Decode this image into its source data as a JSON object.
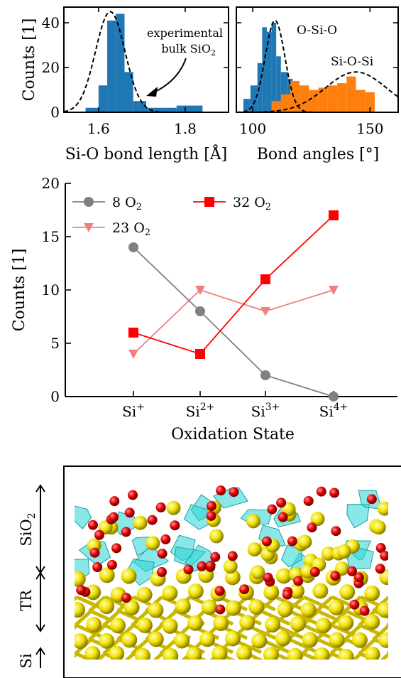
{
  "colors": {
    "blue": "#1f77b4",
    "orange": "#ff7f0e",
    "gray": "#808080",
    "red": "#ff0000",
    "pink": "#f08080",
    "si_atom": "#f0e000",
    "o_atom": "#e00000",
    "polyhedra": "#2ad4d4"
  },
  "chart_data": [
    {
      "type": "histogram",
      "ylabel": "Counts [1]",
      "xlabel": "Si-O bond length [Å]",
      "xlim": [
        1.52,
        1.9
      ],
      "ylim": [
        0,
        47
      ],
      "xticks": [
        1.6,
        1.8
      ],
      "xtick_labels": [
        "1.6",
        "1.8"
      ],
      "yticks": [
        0,
        20,
        40
      ],
      "ytick_labels": [
        "0",
        "20",
        "40"
      ],
      "bins": [
        {
          "x0": 1.57,
          "x1": 1.6,
          "count": 2
        },
        {
          "x0": 1.6,
          "x1": 1.62,
          "count": 12
        },
        {
          "x0": 1.62,
          "x1": 1.64,
          "count": 41
        },
        {
          "x0": 1.64,
          "x1": 1.66,
          "count": 44
        },
        {
          "x0": 1.66,
          "x1": 1.68,
          "count": 18
        },
        {
          "x0": 1.68,
          "x1": 1.71,
          "count": 5
        },
        {
          "x0": 1.71,
          "x1": 1.78,
          "count": 2
        },
        {
          "x0": 1.78,
          "x1": 1.84,
          "count": 3
        }
      ],
      "reference_curve": {
        "mu": 1.627,
        "sigma": 0.034,
        "peak": 45
      },
      "annotation_line1": "experimental",
      "annotation_line2": "bulk SiO",
      "annotation_sub": "2"
    },
    {
      "type": "histogram",
      "xlabel": "Bond angles [°]",
      "xlim": [
        93,
        162
      ],
      "ylim": [
        0,
        47
      ],
      "xticks": [
        100,
        150
      ],
      "xtick_labels": [
        "100",
        "150"
      ],
      "series": [
        {
          "name": "O-Si-O",
          "color": "#1f77b4",
          "bins": [
            {
              "x0": 96,
              "x1": 99,
              "count": 6
            },
            {
              "x0": 99,
              "x1": 102,
              "count": 12
            },
            {
              "x0": 102,
              "x1": 104,
              "count": 22
            },
            {
              "x0": 104,
              "x1": 106,
              "count": 38
            },
            {
              "x0": 106,
              "x1": 108,
              "count": 36
            },
            {
              "x0": 108,
              "x1": 110,
              "count": 40
            },
            {
              "x0": 110,
              "x1": 112,
              "count": 25
            },
            {
              "x0": 112,
              "x1": 115,
              "count": 18
            },
            {
              "x0": 115,
              "x1": 117,
              "count": 15
            },
            {
              "x0": 117,
              "x1": 120,
              "count": 12
            }
          ]
        },
        {
          "name": "Si-O-Si",
          "color": "#ff7f0e",
          "bins": [
            {
              "x0": 108,
              "x1": 112,
              "count": 5
            },
            {
              "x0": 112,
              "x1": 116,
              "count": 8
            },
            {
              "x0": 116,
              "x1": 120,
              "count": 14
            },
            {
              "x0": 120,
              "x1": 124,
              "count": 12
            },
            {
              "x0": 124,
              "x1": 128,
              "count": 10
            },
            {
              "x0": 128,
              "x1": 132,
              "count": 11
            },
            {
              "x0": 132,
              "x1": 136,
              "count": 12
            },
            {
              "x0": 136,
              "x1": 140,
              "count": 13
            },
            {
              "x0": 140,
              "x1": 144,
              "count": 16
            },
            {
              "x0": 144,
              "x1": 148,
              "count": 10
            },
            {
              "x0": 148,
              "x1": 152,
              "count": 9
            }
          ]
        }
      ],
      "reference_curves": [
        {
          "mu": 109.5,
          "sigma": 4.2,
          "peak": 41
        },
        {
          "mu": 144,
          "sigma": 13,
          "peak": 18
        }
      ]
    },
    {
      "type": "line",
      "xlabel": "Oxidation State",
      "ylabel": "Counts [1]",
      "ylim": [
        0,
        20
      ],
      "yticks": [
        0,
        5,
        10,
        15,
        20
      ],
      "ytick_labels": [
        "0",
        "5",
        "10",
        "15",
        "20"
      ],
      "categories": [
        {
          "base": "Si",
          "sup": "+"
        },
        {
          "base": "Si",
          "sup": "2+"
        },
        {
          "base": "Si",
          "sup": "3+"
        },
        {
          "base": "Si",
          "sup": "4+"
        }
      ],
      "series": [
        {
          "name_base": "8 O",
          "name_sub": "2",
          "color": "#808080",
          "marker": "circle",
          "values": [
            14,
            8,
            2,
            0
          ]
        },
        {
          "name_base": "23 O",
          "name_sub": "2",
          "color": "#f08080",
          "marker": "triangle-down",
          "values": [
            4,
            10,
            8,
            10
          ]
        },
        {
          "name_base": "32 O",
          "name_sub": "2",
          "color": "#ff0000",
          "marker": "square",
          "values": [
            6,
            4,
            11,
            17
          ]
        }
      ],
      "legend_placement": "top-left"
    }
  ],
  "structure": {
    "labels": [
      {
        "base": "SiO",
        "sub": "2"
      },
      {
        "base": "TR",
        "sub": ""
      },
      {
        "base": "Si",
        "sub": ""
      }
    ]
  }
}
